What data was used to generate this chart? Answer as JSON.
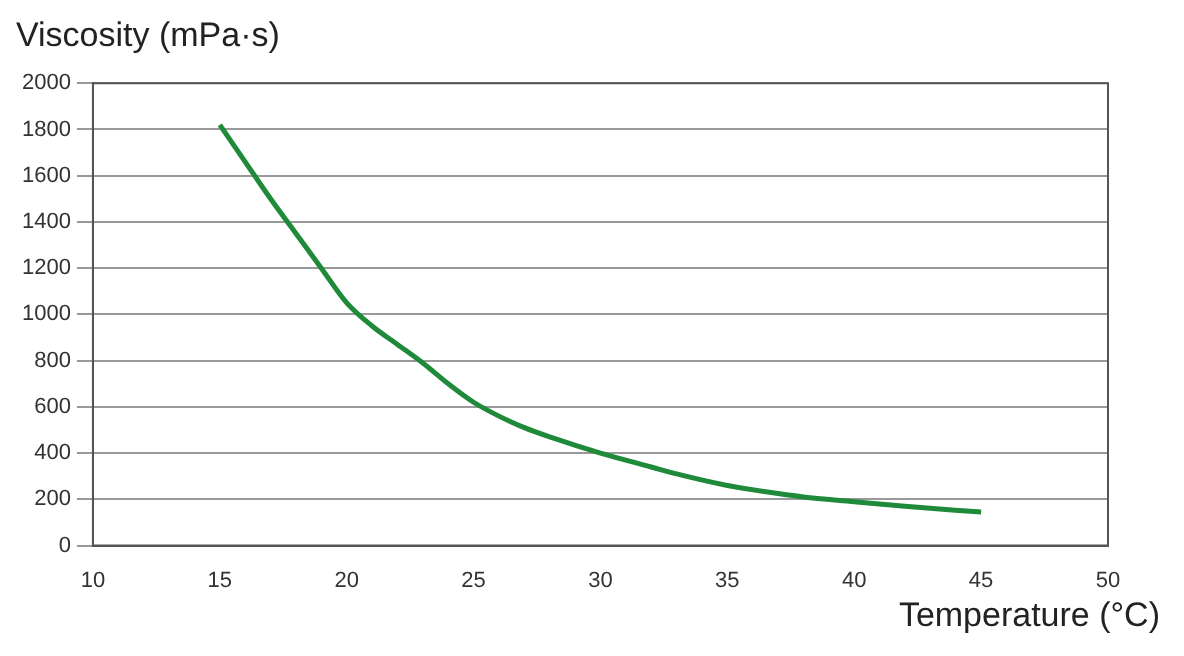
{
  "chart_data": {
    "type": "line",
    "xlabel": "Temperature (°C)",
    "ylabel": "Viscosity (mPa·s)",
    "x": [
      15,
      16,
      17,
      18,
      19,
      20,
      21,
      22,
      23,
      24,
      25,
      26,
      27,
      28,
      30,
      32,
      33,
      35,
      37,
      38,
      40,
      42,
      45
    ],
    "series": [
      {
        "color": "#1e8a3a",
        "values": [
          1820,
          1660,
          1500,
          1350,
          1200,
          1050,
          950,
          870,
          790,
          700,
          620,
          560,
          510,
          470,
          400,
          340,
          310,
          260,
          225,
          210,
          190,
          170,
          145
        ]
      }
    ],
    "xlim": [
      10,
      50
    ],
    "xticks": [
      10,
      15,
      20,
      25,
      30,
      35,
      40,
      45,
      50
    ],
    "ylim": [
      0,
      2000
    ],
    "yticks": [
      0,
      200,
      400,
      600,
      800,
      1000,
      1200,
      1400,
      1600,
      1800,
      2000
    ],
    "grid": "y",
    "legend": false,
    "marker": "none",
    "line_style": "solid"
  }
}
